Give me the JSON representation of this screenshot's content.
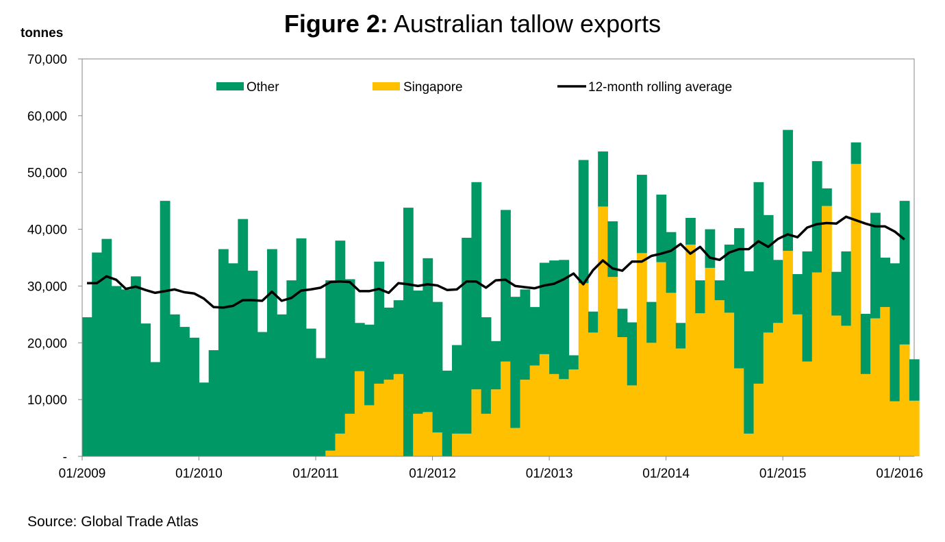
{
  "chart_data": {
    "type": "bar",
    "title_bold": "Figure 2:",
    "title_rest": " Australian tallow exports",
    "ylabel": "tonnes",
    "source": "Source: Global Trade Atlas",
    "ylim": [
      0,
      70000
    ],
    "y_ticks": [
      0,
      10000,
      20000,
      30000,
      40000,
      50000,
      60000,
      70000
    ],
    "y_tick_labels": [
      "-",
      "10,000",
      "20,000",
      "30,000",
      "40,000",
      "50,000",
      "60,000",
      "70,000"
    ],
    "x_tick_labels": [
      "01/2009",
      "01/2010",
      "01/2011",
      "01/2012",
      "01/2013",
      "01/2014",
      "01/2015",
      "01/2016"
    ],
    "x_tick_indices": [
      0,
      12,
      24,
      36,
      48,
      60,
      72,
      84
    ],
    "grid": false,
    "legend_position": "top",
    "stacked": true,
    "colors": {
      "other": "#009966",
      "singapore": "#FFC000",
      "average": "#000000"
    },
    "series": [
      {
        "name": "Singapore",
        "kind": "bar",
        "values": [
          0,
          0,
          0,
          0,
          0,
          0,
          0,
          0,
          0,
          0,
          0,
          0,
          0,
          0,
          0,
          0,
          0,
          0,
          0,
          0,
          0,
          0,
          0,
          0,
          0,
          1000,
          4000,
          7500,
          15000,
          9000,
          12800,
          13500,
          14500,
          0,
          7500,
          7800,
          4200,
          0,
          4000,
          4000,
          11800,
          7500,
          11800,
          16700,
          5000,
          13500,
          16000,
          18000,
          14500,
          13600,
          15300,
          30500,
          21800,
          44000,
          31600,
          21000,
          12500,
          35800,
          20000,
          34200,
          28800,
          19000,
          37300,
          25200,
          33200,
          27500,
          25300,
          15500,
          4000,
          12800,
          21800,
          23500,
          36200,
          25000,
          16700,
          32400,
          44100,
          24800,
          23000,
          51500,
          14500,
          24300,
          26300,
          9700,
          19700,
          9800
        ]
      },
      {
        "name": "Other",
        "kind": "bar",
        "values": [
          24500,
          35900,
          38300,
          30000,
          29400,
          31700,
          23400,
          16600,
          45000,
          25000,
          22800,
          20900,
          13000,
          18700,
          36500,
          34000,
          41800,
          32700,
          21900,
          36500,
          25000,
          31000,
          38400,
          22500,
          17300,
          30000,
          34000,
          23700,
          8500,
          14200,
          21500,
          12700,
          13000,
          43800,
          21700,
          27100,
          23000,
          15100,
          15600,
          34500,
          36500,
          17000,
          8500,
          26700,
          23100,
          15900,
          10300,
          16100,
          20000,
          21000,
          2500,
          21700,
          3700,
          9700,
          9800,
          5000,
          11100,
          13800,
          7200,
          11900,
          10700,
          4500,
          4700,
          5800,
          6800,
          3500,
          12000,
          24700,
          28600,
          35500,
          20700,
          11100,
          21300,
          7100,
          19400,
          19600,
          3100,
          7700,
          13100,
          3800,
          10600,
          18600,
          8700,
          24300,
          25300,
          7300
        ]
      },
      {
        "name": "12-month rolling average",
        "kind": "line",
        "values": [
          30500,
          30500,
          31700,
          31100,
          29500,
          29900,
          29300,
          28800,
          29100,
          29400,
          28900,
          28700,
          27800,
          26300,
          26200,
          26500,
          27500,
          27500,
          27400,
          29000,
          27400,
          27900,
          29200,
          29400,
          29700,
          30700,
          30800,
          30700,
          29100,
          29100,
          29500,
          28800,
          30500,
          30300,
          30000,
          30300,
          30100,
          29300,
          29400,
          30800,
          30800,
          29700,
          31000,
          31100,
          30000,
          29800,
          29600,
          30100,
          30400,
          31200,
          32200,
          30300,
          32800,
          34500,
          33100,
          32700,
          34300,
          34300,
          35300,
          35700,
          36200,
          37400,
          35700,
          36900,
          35000,
          34600,
          35900,
          36500,
          36500,
          37900,
          36900,
          38300,
          39100,
          38600,
          40300,
          40900,
          41100,
          41000,
          42200,
          41600,
          41000,
          40500,
          40500,
          39600,
          38200
        ]
      }
    ]
  }
}
